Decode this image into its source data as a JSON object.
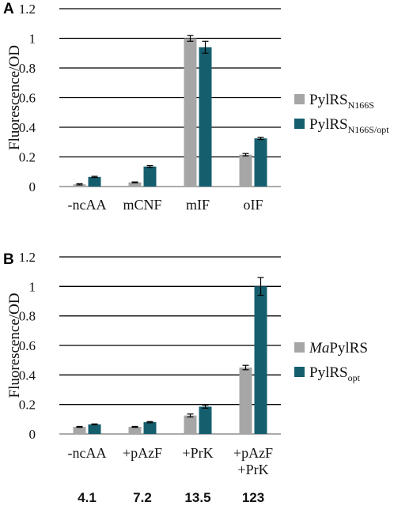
{
  "panels": [
    {
      "letter": "A",
      "chart_data": {
        "type": "bar",
        "categories": [
          "-ncAA",
          "mCNF",
          "mIF",
          "oIF"
        ],
        "ylabel": "Fluorescence/OD",
        "ylim": [
          0,
          1.2
        ],
        "yticks": [
          "0",
          "0.2",
          "0.4",
          "0.6",
          "0.8",
          "1",
          "1.2"
        ],
        "grid": true,
        "legend_position": "right",
        "series": [
          {
            "name": "PylRS",
            "name_sub": "N166S",
            "name_italic": "",
            "color": "#a6a6a6",
            "values": [
              0.015,
              0.028,
              1.0,
              0.215
            ],
            "errors": [
              0.004,
              0.003,
              0.02,
              0.008
            ]
          },
          {
            "name": "PylRS",
            "name_sub": "N166S/opt",
            "name_italic": "",
            "color": "#155e6e",
            "values": [
              0.065,
              0.135,
              0.94,
              0.325
            ],
            "errors": [
              0.004,
              0.006,
              0.04,
              0.008
            ]
          }
        ]
      }
    },
    {
      "letter": "B",
      "chart_data": {
        "type": "bar",
        "categories": [
          "-ncAA",
          "+pAzF",
          "+PrK",
          "+pAzF\n+PrK"
        ],
        "ylabel": "Fluorescence/OD",
        "ylim": [
          0,
          1.2
        ],
        "yticks": [
          "0",
          "0.2",
          "0.4",
          "0.6",
          "0.8",
          "1",
          "1.2"
        ],
        "grid": true,
        "legend_position": "right",
        "series": [
          {
            "name": "PylRS",
            "name_sub": "",
            "name_italic": "Ma",
            "color": "#a6a6a6",
            "values": [
              0.048,
              0.048,
              0.125,
              0.45
            ],
            "errors": [
              0.003,
              0.003,
              0.01,
              0.015
            ]
          },
          {
            "name": "PylRS",
            "name_sub": "opt",
            "name_italic": "",
            "color": "#155e6e",
            "values": [
              0.065,
              0.08,
              0.185,
              1.0
            ],
            "errors": [
              0.003,
              0.004,
              0.01,
              0.06
            ]
          }
        ],
        "ratios": [
          "4.1",
          "7.2",
          "13.5",
          "123"
        ]
      }
    }
  ]
}
